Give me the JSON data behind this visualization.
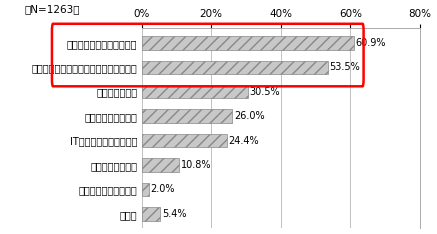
{
  "categories": [
    "その他",
    "病院等の病床数の削減",
    "入院期間の短縮化",
    "IT化による医療の効率化",
    "介護サービスの充実",
    "在宅医療の充実",
    "特定健診・保健指導等による病気の予防",
    "ジェネリック医薬品の普及"
  ],
  "values": [
    5.4,
    2.0,
    10.8,
    24.4,
    26.0,
    30.5,
    53.5,
    60.9
  ],
  "bar_color": "#c8c8c8",
  "bar_hatch": "///",
  "bar_edge_color": "#888888",
  "value_labels": [
    "5.4%",
    "2.0%",
    "10.8%",
    "24.4%",
    "26.0%",
    "30.5%",
    "53.5%",
    "60.9%"
  ],
  "highlight_indices": [
    6,
    7
  ],
  "highlight_box_color": "#ff0000",
  "n_label": "（N=1263）",
  "xlim": [
    0,
    80
  ],
  "xticks": [
    0,
    20,
    40,
    60,
    80
  ],
  "xticklabels": [
    "0%",
    "20%",
    "40%",
    "60%",
    "80%"
  ],
  "bg_color": "#ffffff",
  "font_size_labels": 7.0,
  "font_size_values": 7.0,
  "font_size_xticks": 7.5,
  "font_size_n": 7.5,
  "bar_height": 0.55
}
